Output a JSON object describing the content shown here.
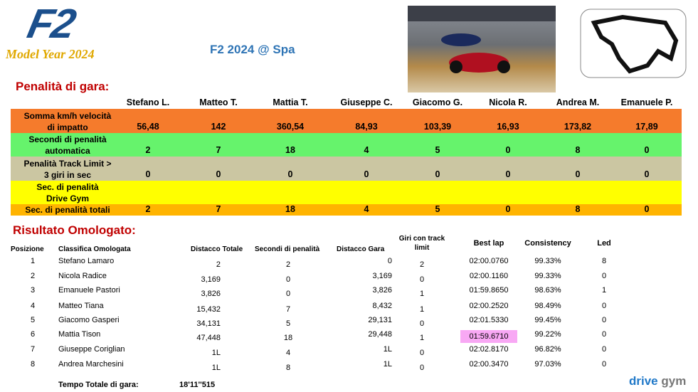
{
  "header": {
    "logo": "F2",
    "subtitle": "Model Year 2024",
    "title": "F2 2024 @ Spa"
  },
  "penalties": {
    "title": "Penalità di gara:",
    "drivers": [
      "Stefano L.",
      "Matteo T.",
      "Mattia T.",
      "Giuseppe C.",
      "Giacomo G.",
      "Nicola R.",
      "Andrea M.",
      "Emanuele P."
    ],
    "rows": [
      {
        "label": [
          "Somma km/h velocità",
          "di impatto"
        ],
        "color": "#f57b2c",
        "values": [
          "56,48",
          "142",
          "360,54",
          "84,93",
          "103,39",
          "16,93",
          "173,82",
          "17,89"
        ]
      },
      {
        "label": [
          "Secondi di penalità",
          "automatica"
        ],
        "color": "#66f36c",
        "values": [
          "2",
          "7",
          "18",
          "4",
          "5",
          "0",
          "8",
          "0"
        ]
      },
      {
        "label": [
          "Penalità Track Limit >",
          "3 giri in sec"
        ],
        "color": "#cbc6a2",
        "values": [
          "0",
          "0",
          "0",
          "0",
          "0",
          "0",
          "0",
          "0"
        ]
      },
      {
        "label": [
          "Sec. di penalità",
          "Drive Gym"
        ],
        "color": "#ffff00",
        "values": []
      },
      {
        "label": [
          "Sec. di penalità totali"
        ],
        "color": "#ffb400",
        "values": [
          "2",
          "7",
          "18",
          "4",
          "5",
          "0",
          "8",
          "0"
        ]
      }
    ]
  },
  "results": {
    "title": "Risultato Omologato:",
    "columns": [
      [
        "Posizione"
      ],
      [
        "Classifica Omologata"
      ],
      [
        "Distacco Totale"
      ],
      [
        "Secondi di penalità"
      ],
      [
        "Distacco Gara"
      ],
      [
        "Giri con track",
        "limit"
      ],
      [
        "Best lap"
      ],
      [
        "Consistency"
      ],
      [
        "Led"
      ]
    ],
    "rows": [
      [
        "1",
        "Stefano Lamaro",
        "2",
        "2",
        "0",
        "2",
        "02:00.0760",
        "99.33%",
        "8"
      ],
      [
        "2",
        "Nicola Radice",
        "3,169",
        "0",
        "3,169",
        "0",
        "02:00.1160",
        "99.33%",
        "0"
      ],
      [
        "3",
        "Emanuele Pastori",
        "3,826",
        "0",
        "3,826",
        "1",
        "01:59.8650",
        "98.63%",
        "1"
      ],
      [
        "4",
        "Matteo Tiana",
        "15,432",
        "7",
        "8,432",
        "1",
        "02:00.2520",
        "98.49%",
        "0"
      ],
      [
        "5",
        "Giacomo Gasperi",
        "34,131",
        "5",
        "29,131",
        "0",
        "02:01.5330",
        "99.45%",
        "0"
      ],
      [
        "6",
        "Mattia Tison",
        "47,448",
        "18",
        "29,448",
        "1",
        "01:59.6710",
        "99.22%",
        "0"
      ],
      [
        "7",
        "Giuseppe Coriglian",
        "1L",
        "4",
        "1L",
        "0",
        "02:02.8170",
        "96.82%",
        "0"
      ],
      [
        "8",
        "Andrea Marchesini",
        "1L",
        "8",
        "1L",
        "0",
        "02:00.3470",
        "97.03%",
        "0"
      ]
    ],
    "highlight": {
      "row": 5,
      "col": 6,
      "color": "#f8a8f4"
    },
    "total_label": "Tempo Totale di gara:",
    "total_value": "18'11''515"
  },
  "footer": {
    "brand": [
      "drive",
      "gym"
    ]
  }
}
